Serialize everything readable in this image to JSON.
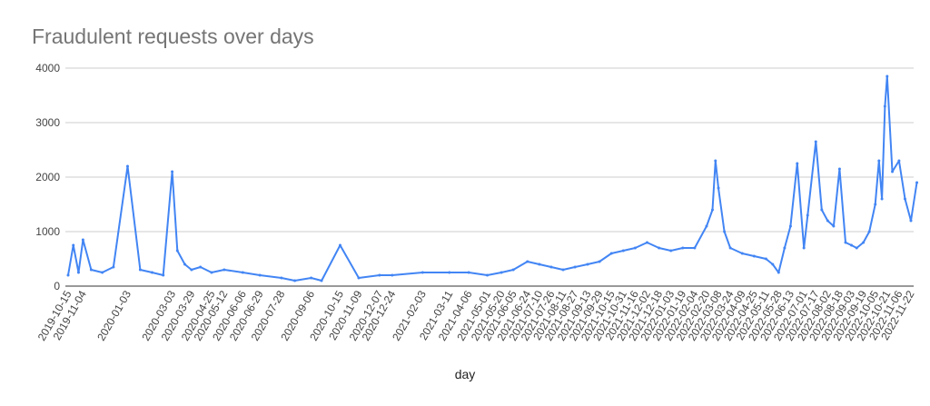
{
  "chart_data": {
    "type": "line",
    "title": "Fraudulent requests over days",
    "xlabel": "day",
    "ylabel": "",
    "ylim": [
      0,
      4000
    ],
    "yticks": [
      0,
      1000,
      2000,
      3000,
      4000
    ],
    "grid": true,
    "legend": "none",
    "line_color": "#4285F4",
    "x_tick_labels": [
      "2019-10-15",
      "2019-11-04",
      "2020-01-03",
      "2020-03-03",
      "2020-03-29",
      "2020-04-25",
      "2020-05-12",
      "2020-06-06",
      "2020-06-29",
      "2020-07-28",
      "2020-09-06",
      "2020-10-15",
      "2020-11-09",
      "2020-12-07",
      "2020-12-24",
      "2021-02-03",
      "2021-03-11",
      "2021-04-06",
      "2021-05-01",
      "2021-05-20",
      "2021-06-05",
      "2021-06-24",
      "2021-07-10",
      "2021-07-26",
      "2021-08-11",
      "2021-08-27",
      "2021-09-13",
      "2021-09-29",
      "2021-10-15",
      "2021-10-31",
      "2021-11-16",
      "2021-12-02",
      "2021-12-18",
      "2022-01-03",
      "2022-01-19",
      "2022-02-04",
      "2022-02-20",
      "2022-03-08",
      "2022-03-24",
      "2022-04-09",
      "2022-04-25",
      "2022-05-11",
      "2022-05-28",
      "2022-06-13",
      "2022-07-01",
      "2022-07-17",
      "2022-08-02",
      "2022-08-18",
      "2022-09-03",
      "2022-09-19",
      "2022-10-05",
      "2022-10-21",
      "2022-11-06",
      "2022-11-22"
    ],
    "series": [
      {
        "x": [
          "2019-10-15",
          "2019-10-22",
          "2019-10-29",
          "2019-11-04",
          "2019-11-15",
          "2019-11-30",
          "2019-12-15",
          "2020-01-03",
          "2020-01-20",
          "2020-02-05",
          "2020-02-20",
          "2020-03-03",
          "2020-03-10",
          "2020-03-20",
          "2020-03-29",
          "2020-04-10",
          "2020-04-25",
          "2020-05-12",
          "2020-06-06",
          "2020-06-29",
          "2020-07-28",
          "2020-08-15",
          "2020-09-06",
          "2020-09-20",
          "2020-10-15",
          "2020-11-09",
          "2020-12-07",
          "2020-12-24",
          "2021-02-03",
          "2021-03-11",
          "2021-04-06",
          "2021-05-01",
          "2021-05-20",
          "2021-06-05",
          "2021-06-24",
          "2021-07-10",
          "2021-07-26",
          "2021-08-11",
          "2021-08-27",
          "2021-09-13",
          "2021-09-29",
          "2021-10-15",
          "2021-10-31",
          "2021-11-16",
          "2021-12-02",
          "2021-12-18",
          "2022-01-03",
          "2022-01-19",
          "2022-02-04",
          "2022-02-20",
          "2022-02-28",
          "2022-03-04",
          "2022-03-08",
          "2022-03-16",
          "2022-03-24",
          "2022-04-09",
          "2022-04-25",
          "2022-05-11",
          "2022-05-20",
          "2022-05-28",
          "2022-06-05",
          "2022-06-13",
          "2022-06-22",
          "2022-07-01",
          "2022-07-06",
          "2022-07-17",
          "2022-07-25",
          "2022-08-02",
          "2022-08-10",
          "2022-08-18",
          "2022-08-26",
          "2022-09-03",
          "2022-09-10",
          "2022-09-19",
          "2022-09-27",
          "2022-10-05",
          "2022-10-10",
          "2022-10-14",
          "2022-10-18",
          "2022-10-21",
          "2022-10-28",
          "2022-11-06",
          "2022-11-14",
          "2022-11-22",
          "2022-11-30"
        ],
        "y": [
          200,
          750,
          250,
          850,
          300,
          250,
          350,
          2200,
          300,
          250,
          200,
          2100,
          650,
          400,
          300,
          350,
          250,
          300,
          250,
          200,
          150,
          100,
          150,
          100,
          750,
          150,
          200,
          200,
          250,
          250,
          250,
          200,
          250,
          300,
          450,
          400,
          350,
          300,
          350,
          400,
          450,
          600,
          650,
          700,
          800,
          700,
          650,
          700,
          700,
          1100,
          1400,
          2300,
          1800,
          1000,
          700,
          600,
          550,
          500,
          400,
          250,
          700,
          1100,
          2250,
          700,
          1300,
          2650,
          1400,
          1200,
          1100,
          2150,
          800,
          750,
          700,
          800,
          1000,
          1500,
          2300,
          1600,
          3300,
          3850,
          2100,
          2300,
          1600,
          1200,
          1900
        ]
      }
    ]
  }
}
